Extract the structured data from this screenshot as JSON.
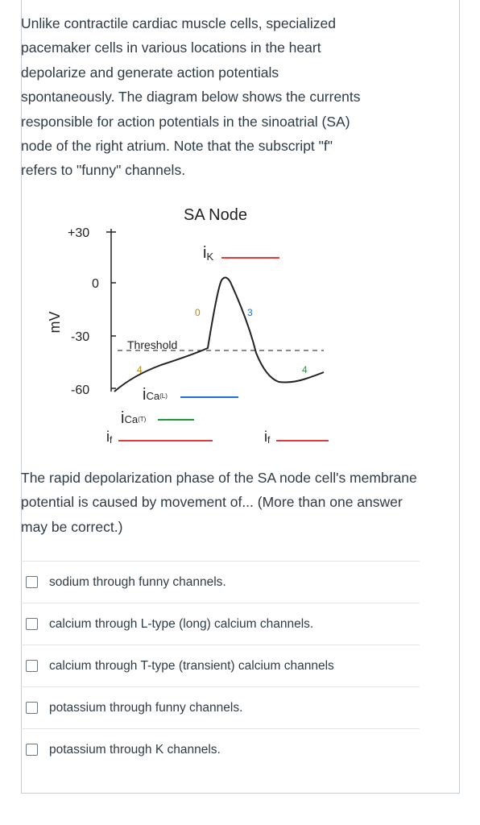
{
  "stem": {
    "lines": [
      "Unlike contractile cardiac muscle cells, specialized",
      "pacemaker cells in various locations in the heart",
      "depolarize and generate action potentials",
      "spontaneously. The diagram below shows the currents",
      "responsible for action potentials in the sinoatrial (SA)",
      "node of the right atrium. Note that the subscript \"f\"",
      "refers to \"funny\" channels."
    ]
  },
  "diagram": {
    "title": "SA Node",
    "ylabel": "mV",
    "yticks": [
      "+30",
      "0",
      "-30",
      "-60"
    ],
    "threshold_label": "Threshold",
    "phase_labels": {
      "p4_left": "4",
      "p0": "0",
      "p3": "3",
      "p4_right": "4"
    },
    "currents": {
      "ik_main": "i",
      "ik_sub": "K",
      "ical_main": "i",
      "ical_sub": "Ca",
      "ical_sup": "(L)",
      "icat_main": "i",
      "icat_sub": "Ca",
      "icat_sup": "(T)",
      "if_main": "i",
      "if_sub": "f",
      "if2_main": "i",
      "if2_sub": "f"
    },
    "colors": {
      "ik": "#e53935",
      "ical": "#1e6fd9",
      "icat": "#1a9a3a",
      "if": "#e53935",
      "phase": "#b8860b"
    }
  },
  "question": {
    "text": "The rapid depolarization phase of the SA node cell's membrane potential is caused by movement of... (More than one answer may be correct.)"
  },
  "answers": [
    {
      "label": "sodium through funny channels.",
      "checked": false
    },
    {
      "label": "calcium through L-type (long) calcium channels.",
      "checked": false
    },
    {
      "label": "calcium through T-type (transient) calcium channels",
      "checked": false
    },
    {
      "label": "potassium through funny channels.",
      "checked": false
    },
    {
      "label": "potassium through K channels.",
      "checked": false
    }
  ]
}
